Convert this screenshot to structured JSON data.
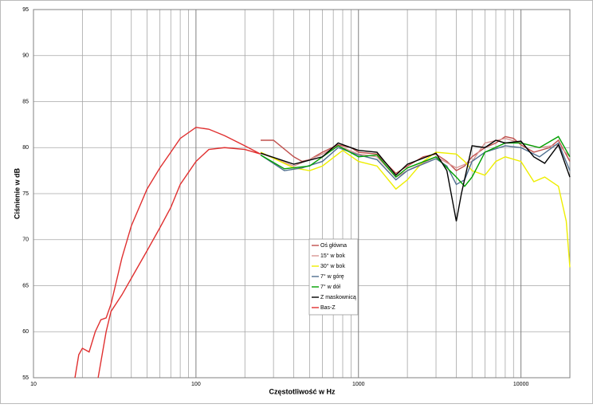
{
  "chart_data": {
    "type": "line",
    "xscale": "log",
    "grid": true,
    "ylabel": "Ciśnienie w dB",
    "xlabel": "Częstotliwość w Hz",
    "xlim": [
      10,
      20000
    ],
    "ylim": [
      55,
      95
    ],
    "xticks": [
      10,
      100,
      1000,
      10000
    ],
    "x_minor_ticks": [
      20,
      30,
      40,
      50,
      60,
      70,
      80,
      90,
      200,
      300,
      400,
      500,
      600,
      700,
      800,
      900,
      2000,
      3000,
      4000,
      5000,
      6000,
      7000,
      8000,
      9000,
      20000
    ],
    "yticks": [
      55,
      60,
      65,
      70,
      75,
      80,
      85,
      90,
      95
    ],
    "series": [
      {
        "name": "Oś główna",
        "color": "#c0504d",
        "x": [
          250,
          300,
          400,
          450,
          500,
          600,
          750,
          900,
          1000,
          1300,
          1700,
          2000,
          2500,
          3000,
          3500,
          4000,
          4500,
          5000,
          6000,
          7000,
          8000,
          9000,
          10000,
          12000,
          15000,
          17000,
          20000
        ],
        "values": [
          80.8,
          80.8,
          79,
          78.5,
          78.7,
          79.5,
          80.3,
          80,
          79.5,
          79.3,
          77.2,
          78,
          79,
          79.3,
          78.5,
          77.5,
          78,
          79,
          80,
          80.5,
          81.2,
          81,
          80.3,
          79.5,
          80,
          80.8,
          78.5
        ]
      },
      {
        "name": "15° w bok",
        "color": "#d99694",
        "x": [
          250,
          400,
          600,
          750,
          1000,
          1300,
          1700,
          2000,
          3000,
          4000,
          5000,
          6000,
          8000,
          10000,
          13000,
          17000,
          20000
        ],
        "values": [
          79.4,
          78,
          79.3,
          80.2,
          79.3,
          79,
          76.8,
          77.5,
          79,
          77.8,
          78.5,
          80.5,
          81,
          80.5,
          80,
          80.3,
          79
        ]
      },
      {
        "name": "30° w bok",
        "color": "#eeee00",
        "x": [
          250,
          400,
          500,
          600,
          800,
          1000,
          1300,
          1700,
          2000,
          2500,
          3000,
          4000,
          4500,
          5000,
          6000,
          7000,
          8000,
          10000,
          12000,
          14000,
          17000,
          19000,
          20000
        ],
        "values": [
          79.5,
          77.8,
          77.5,
          78,
          79.7,
          78.5,
          78,
          75.5,
          76.5,
          78.5,
          79.5,
          79.3,
          78.5,
          77.5,
          77,
          78.5,
          79,
          78.5,
          76.3,
          76.8,
          75.8,
          72,
          67
        ]
      },
      {
        "name": "7° w górę",
        "color": "#4f6f8f",
        "x": [
          250,
          350,
          450,
          600,
          750,
          1000,
          1300,
          1700,
          2000,
          3000,
          3500,
          4000,
          4500,
          5000,
          6000,
          8000,
          10000,
          13000,
          17000,
          20000
        ],
        "values": [
          79.2,
          77.5,
          77.8,
          78.5,
          80,
          79.2,
          78.7,
          76.5,
          77.5,
          78.8,
          78,
          76,
          76.5,
          78.5,
          79.5,
          80.2,
          80,
          79,
          80.5,
          77.5
        ]
      },
      {
        "name": "7° w dół",
        "color": "#00a000",
        "x": [
          250,
          350,
          500,
          750,
          1000,
          1300,
          1700,
          2000,
          3000,
          4000,
          4500,
          5000,
          6000,
          8000,
          10000,
          13000,
          17000,
          20000
        ],
        "values": [
          79.2,
          77.7,
          78,
          80.2,
          79,
          79.2,
          76.8,
          77.8,
          79,
          76.8,
          75.8,
          76.8,
          79.5,
          80.5,
          80.5,
          80,
          81.2,
          79
        ]
      },
      {
        "name": "Z maskownicą",
        "color": "#000000",
        "x": [
          250,
          400,
          600,
          750,
          1000,
          1300,
          1700,
          2000,
          3000,
          3500,
          4000,
          4300,
          5000,
          6000,
          7000,
          8000,
          10000,
          12000,
          14000,
          17000,
          20000
        ],
        "values": [
          79.4,
          78.2,
          79,
          80.5,
          79.7,
          79.5,
          77,
          78.2,
          79.4,
          77.5,
          72,
          75,
          80.2,
          80,
          80.8,
          80.5,
          80.7,
          79,
          78.3,
          80.3,
          76.8
        ]
      },
      {
        "name": "Bas-Z",
        "color": "#e03030",
        "x": [
          18,
          19,
          20,
          22,
          24,
          26,
          28,
          30,
          35,
          40,
          50,
          60,
          70,
          80,
          100,
          120,
          150,
          200,
          250,
          null,
          25,
          28,
          30,
          35,
          40,
          50,
          60,
          70,
          80,
          100,
          120,
          150,
          200,
          250
        ],
        "values": [
          55,
          57.5,
          58.2,
          57.8,
          60,
          61.3,
          61.5,
          63,
          68,
          71.5,
          75.5,
          77.8,
          79.5,
          81,
          82.2,
          82,
          81.3,
          80.2,
          79.3,
          null,
          55,
          60,
          62.2,
          64,
          65.8,
          68.8,
          71.3,
          73.5,
          76,
          78.5,
          79.8,
          80,
          79.8,
          79.3
        ]
      }
    ]
  }
}
